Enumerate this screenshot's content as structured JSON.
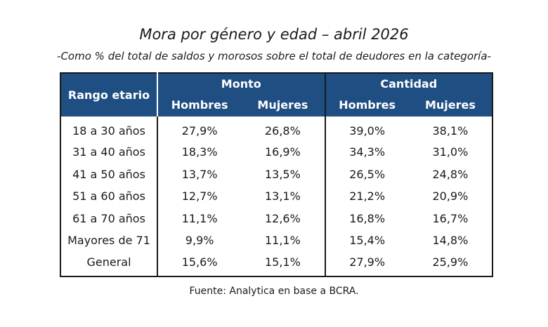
{
  "title": "Mora por género y edad – abril 2026",
  "subtitle": "-Como % del total de saldos y morosos sobre el total de deudores en la categoría-",
  "table": {
    "header_color": "#1f4e82",
    "range_header": "Rango etario",
    "groups": [
      "Monto",
      "Cantidad"
    ],
    "subheaders": [
      "Hombres",
      "Mujeres",
      "Hombres",
      "Mujeres"
    ],
    "rows": [
      {
        "range": "18 a 30 años",
        "values": [
          "27,9%",
          "26,8%",
          "39,0%",
          "38,1%"
        ]
      },
      {
        "range": "31 a 40 años",
        "values": [
          "18,3%",
          "16,9%",
          "34,3%",
          "31,0%"
        ]
      },
      {
        "range": "41 a 50 años",
        "values": [
          "13,7%",
          "13,5%",
          "26,5%",
          "24,8%"
        ]
      },
      {
        "range": "51 a 60 años",
        "values": [
          "12,7%",
          "13,1%",
          "21,2%",
          "20,9%"
        ]
      },
      {
        "range": "61 a 70 años",
        "values": [
          "11,1%",
          "12,6%",
          "16,8%",
          "16,7%"
        ]
      },
      {
        "range": "Mayores de 71",
        "values": [
          "9,9%",
          "11,1%",
          "15,4%",
          "14,8%"
        ]
      },
      {
        "range": "General",
        "values": [
          "15,6%",
          "15,1%",
          "27,9%",
          "25,9%"
        ]
      }
    ]
  },
  "source": "Fuente: Analytica en base a BCRA."
}
